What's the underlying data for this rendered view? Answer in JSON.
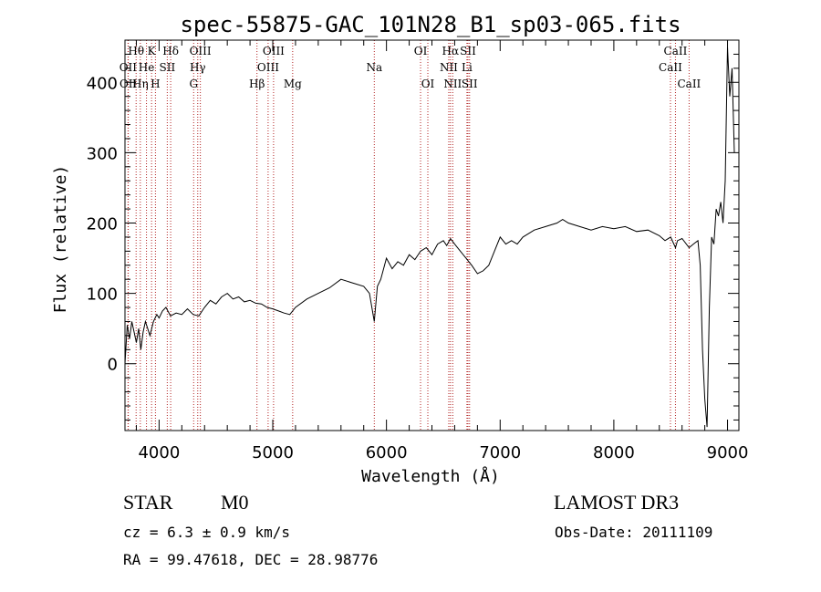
{
  "chart_data": {
    "type": "line",
    "title": "spec-55875-GAC_101N28_B1_sp03-065.fits",
    "xlabel": "Wavelength (Å)",
    "ylabel": "Flux (relative)",
    "xlim": [
      3700,
      9100
    ],
    "ylim": [
      -95,
      460
    ],
    "x_ticks": [
      4000,
      5000,
      6000,
      7000,
      8000,
      9000
    ],
    "y_ticks": [
      0,
      100,
      200,
      300,
      400
    ],
    "series": [
      {
        "name": "spectrum",
        "x": [
          3700,
          3720,
          3740,
          3760,
          3780,
          3800,
          3820,
          3840,
          3860,
          3880,
          3900,
          3920,
          3950,
          3980,
          4000,
          4030,
          4060,
          4100,
          4150,
          4200,
          4250,
          4300,
          4350,
          4400,
          4450,
          4500,
          4550,
          4600,
          4650,
          4700,
          4750,
          4800,
          4850,
          4900,
          4950,
          5000,
          5050,
          5100,
          5150,
          5200,
          5300,
          5400,
          5500,
          5600,
          5700,
          5800,
          5850,
          5893,
          5920,
          5950,
          6000,
          6050,
          6100,
          6150,
          6200,
          6250,
          6300,
          6350,
          6400,
          6450,
          6500,
          6530,
          6563,
          6600,
          6650,
          6700,
          6750,
          6800,
          6850,
          6900,
          6950,
          7000,
          7050,
          7100,
          7150,
          7200,
          7300,
          7400,
          7500,
          7550,
          7600,
          7700,
          7800,
          7900,
          8000,
          8100,
          8200,
          8300,
          8400,
          8450,
          8500,
          8542,
          8560,
          8600,
          8662,
          8700,
          8740,
          8760,
          8780,
          8800,
          8820,
          8840,
          8860,
          8880,
          8900,
          8920,
          8940,
          8960,
          8980,
          9000,
          9020,
          9040,
          9060
        ],
        "y": [
          0,
          55,
          35,
          60,
          45,
          30,
          50,
          20,
          45,
          60,
          50,
          40,
          60,
          70,
          65,
          75,
          80,
          68,
          72,
          70,
          78,
          70,
          68,
          80,
          90,
          85,
          95,
          100,
          92,
          95,
          88,
          90,
          86,
          85,
          80,
          78,
          75,
          72,
          70,
          80,
          92,
          100,
          108,
          120,
          115,
          110,
          100,
          60,
          110,
          120,
          150,
          135,
          145,
          140,
          155,
          148,
          160,
          165,
          155,
          170,
          175,
          168,
          178,
          170,
          160,
          150,
          140,
          128,
          132,
          140,
          160,
          180,
          170,
          175,
          170,
          180,
          190,
          195,
          200,
          205,
          200,
          195,
          190,
          195,
          192,
          195,
          188,
          190,
          182,
          175,
          180,
          165,
          175,
          178,
          165,
          170,
          175,
          140,
          20,
          -50,
          -90,
          80,
          180,
          170,
          220,
          210,
          230,
          200,
          260,
          450,
          380,
          420,
          300
        ]
      }
    ],
    "emission_lines": [
      {
        "label": "Hθ",
        "x": 3798,
        "row": 1
      },
      {
        "label": "K",
        "x": 3934,
        "row": 1
      },
      {
        "label": "Hδ",
        "x": 4102,
        "row": 1
      },
      {
        "label": "OIII",
        "x": 4363,
        "row": 1
      },
      {
        "label": "OIII",
        "x": 5007,
        "row": 1
      },
      {
        "label": "OI",
        "x": 6300,
        "row": 1
      },
      {
        "label": "Hα",
        "x": 6563,
        "row": 1
      },
      {
        "label": "SII",
        "x": 6717,
        "row": 1
      },
      {
        "label": "CaII",
        "x": 8542,
        "row": 1
      },
      {
        "label": "OII",
        "x": 3727,
        "row": 2
      },
      {
        "label": "He",
        "x": 3889,
        "row": 2
      },
      {
        "label": "SII",
        "x": 4072,
        "row": 2
      },
      {
        "label": "Hγ",
        "x": 4340,
        "row": 2
      },
      {
        "label": "OIII",
        "x": 4959,
        "row": 2
      },
      {
        "label": "Na",
        "x": 5893,
        "row": 2
      },
      {
        "label": "NII",
        "x": 6548,
        "row": 2
      },
      {
        "label": "Li",
        "x": 6708,
        "row": 2
      },
      {
        "label": "CaII",
        "x": 8498,
        "row": 2
      },
      {
        "label": "OII",
        "x": 3729,
        "row": 3
      },
      {
        "label": "Hη",
        "x": 3835,
        "row": 3
      },
      {
        "label": "H",
        "x": 3968,
        "row": 3
      },
      {
        "label": "G",
        "x": 4304,
        "row": 3
      },
      {
        "label": "Hβ",
        "x": 4861,
        "row": 3
      },
      {
        "label": "Mg",
        "x": 5175,
        "row": 3
      },
      {
        "label": "OI",
        "x": 6364,
        "row": 3
      },
      {
        "label": "NII",
        "x": 6583,
        "row": 3
      },
      {
        "label": "SII",
        "x": 6731,
        "row": 3
      },
      {
        "label": "CaII",
        "x": 8662,
        "row": 3
      }
    ],
    "line_color": "#000000",
    "marker_color": "#b22222"
  },
  "info": {
    "object_class": "STAR",
    "subclass": "M0",
    "survey": "LAMOST DR3",
    "cz": "cz = 6.3 ± 0.9 km/s",
    "obs_date": "Obs-Date: 20111109",
    "radec": "RA =  99.47618, DEC =  28.98776"
  }
}
